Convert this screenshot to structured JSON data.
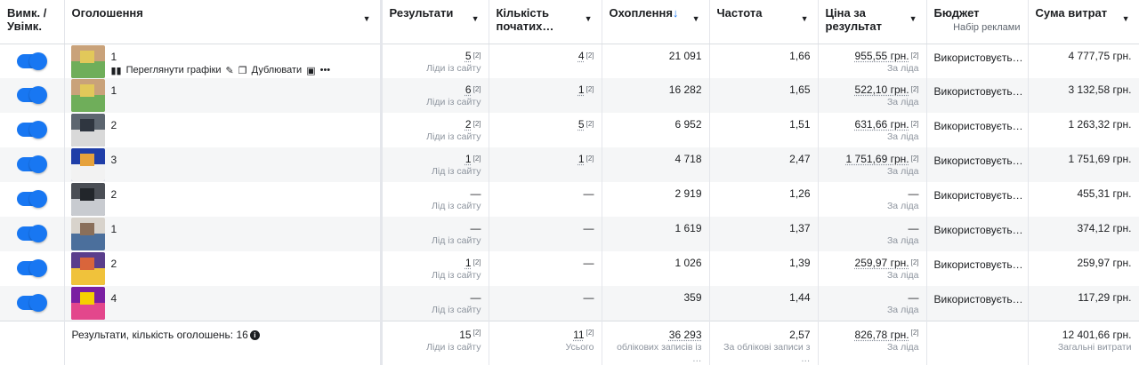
{
  "header": {
    "toggle": "Вимк. / Увімк.",
    "ad": "Оголошення",
    "results": "Результати",
    "starts": "Кількість початих…",
    "reach": "Охоплення",
    "reach_arrow": "↓",
    "frequency": "Частота",
    "cost": "Ціна за результат",
    "budget": "Бюджет",
    "budget_sub": "Набір реклами",
    "spend": "Сума витрат",
    "sort_glyph": "▼"
  },
  "actions": {
    "charts": "Переглянути графіки",
    "duplicate": "Дублювати",
    "more": "•••"
  },
  "badge": "[2]",
  "rows": [
    {
      "name": "1",
      "results": "5",
      "results_sub": "Ліди із сайту",
      "starts": "4",
      "reach": "21 091",
      "frequency": "1,66",
      "cost": "955,55 грн.",
      "cost_sub": "За ліда",
      "budget": "Використовуєть…",
      "spend": "4 777,75 грн."
    },
    {
      "name": "1",
      "results": "6",
      "results_sub": "Ліди із сайту",
      "starts": "1",
      "reach": "16 282",
      "frequency": "1,65",
      "cost": "522,10 грн.",
      "cost_sub": "За ліда",
      "budget": "Використовуєть…",
      "spend": "3 132,58 грн."
    },
    {
      "name": "2",
      "results": "2",
      "results_sub": "Ліди із сайту",
      "starts": "5",
      "reach": "6 952",
      "frequency": "1,51",
      "cost": "631,66 грн.",
      "cost_sub": "За ліда",
      "budget": "Використовуєть…",
      "spend": "1 263,32 грн."
    },
    {
      "name": "3",
      "results": "1",
      "results_sub": "Лід із сайту",
      "starts": "1",
      "reach": "4 718",
      "frequency": "2,47",
      "cost": "1 751,69 грн.",
      "cost_sub": "За ліда",
      "budget": "Використовуєть…",
      "spend": "1 751,69 грн."
    },
    {
      "name": "2",
      "results": "—",
      "results_sub": "Лід із сайту",
      "starts": "—",
      "reach": "2 919",
      "frequency": "1,26",
      "cost": "—",
      "cost_sub": "За ліда",
      "budget": "Використовуєть…",
      "spend": "455,31 грн."
    },
    {
      "name": "1",
      "results": "—",
      "results_sub": "Лід із сайту",
      "starts": "—",
      "reach": "1 619",
      "frequency": "1,37",
      "cost": "—",
      "cost_sub": "За ліда",
      "budget": "Використовуєть…",
      "spend": "374,12 грн."
    },
    {
      "name": "2",
      "results": "1",
      "results_sub": "Лід із сайту",
      "starts": "—",
      "reach": "1 026",
      "frequency": "1,39",
      "cost": "259,97 грн.",
      "cost_sub": "За ліда",
      "budget": "Використовуєть…",
      "spend": "259,97 грн."
    },
    {
      "name": "4",
      "results": "—",
      "results_sub": "Лід із сайту",
      "starts": "—",
      "reach": "359",
      "frequency": "1,44",
      "cost": "—",
      "cost_sub": "За ліда",
      "budget": "Використовуєть…",
      "spend": "117,29 грн."
    }
  ],
  "footer": {
    "label": "Результати, кількість оголошень: 16",
    "info_glyph": "i",
    "results": "15",
    "results_sub": "Ліди із сайту",
    "starts": "11",
    "starts_sub": "Усього",
    "reach": "36 293",
    "reach_sub": "облікових записів із …",
    "frequency": "2,57",
    "frequency_sub": "За облікові записи з …",
    "cost": "826,78 грн.",
    "cost_sub": "За ліда",
    "spend": "12 401,66 грн.",
    "spend_sub": "Загальні витрати"
  },
  "colors": {
    "accent": "#1877f2",
    "row_alt": "#f5f6f7",
    "border": "#e4e6eb"
  }
}
